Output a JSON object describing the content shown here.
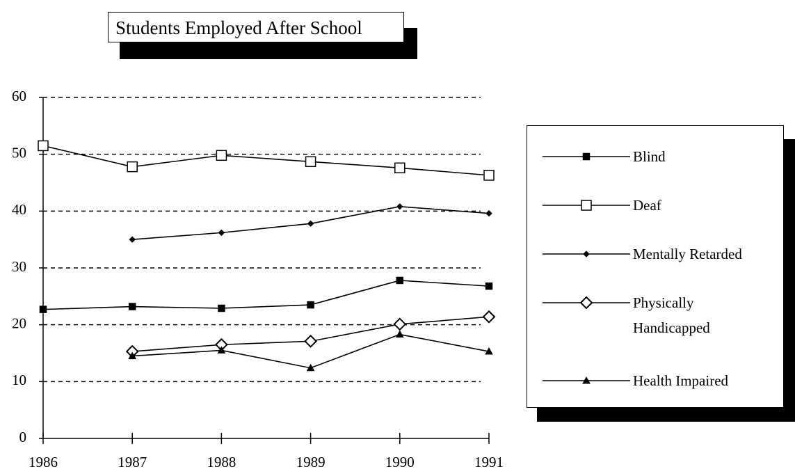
{
  "chart_data": {
    "type": "line",
    "title": "Students Employed After School",
    "x": [
      1986,
      1987,
      1988,
      1989,
      1990,
      1991
    ],
    "xlim": [
      1986,
      1991
    ],
    "xticks": [
      1986,
      1987,
      1988,
      1989,
      1990,
      1991
    ],
    "ylim": [
      0,
      60
    ],
    "yticks": [
      0,
      10,
      20,
      30,
      40,
      50,
      60
    ],
    "grid": true,
    "legend": "right",
    "series": [
      {
        "name": "Blind",
        "color": "#000000",
        "marker": "square-filled",
        "values": [
          22.7,
          23.2,
          22.9,
          23.5,
          27.8,
          26.8
        ]
      },
      {
        "name": "Deaf",
        "color": "#000000",
        "marker": "square-open",
        "values": [
          51.5,
          47.8,
          49.8,
          48.7,
          47.6,
          46.3
        ]
      },
      {
        "name": "Mentally Retarded",
        "color": "#000000",
        "marker": "diamond-small",
        "values": [
          null,
          35,
          36.2,
          37.8,
          40.8,
          39.6
        ]
      },
      {
        "name": "Physically Handicapped",
        "color": "#000000",
        "marker": "diamond-open",
        "values": [
          null,
          15.3,
          16.5,
          17.1,
          20.1,
          21.4
        ]
      },
      {
        "name": "Health Impaired",
        "color": "#000000",
        "marker": "triangle-filled",
        "values": [
          null,
          14.5,
          15.5,
          12.4,
          18.3,
          15.3
        ]
      }
    ]
  }
}
